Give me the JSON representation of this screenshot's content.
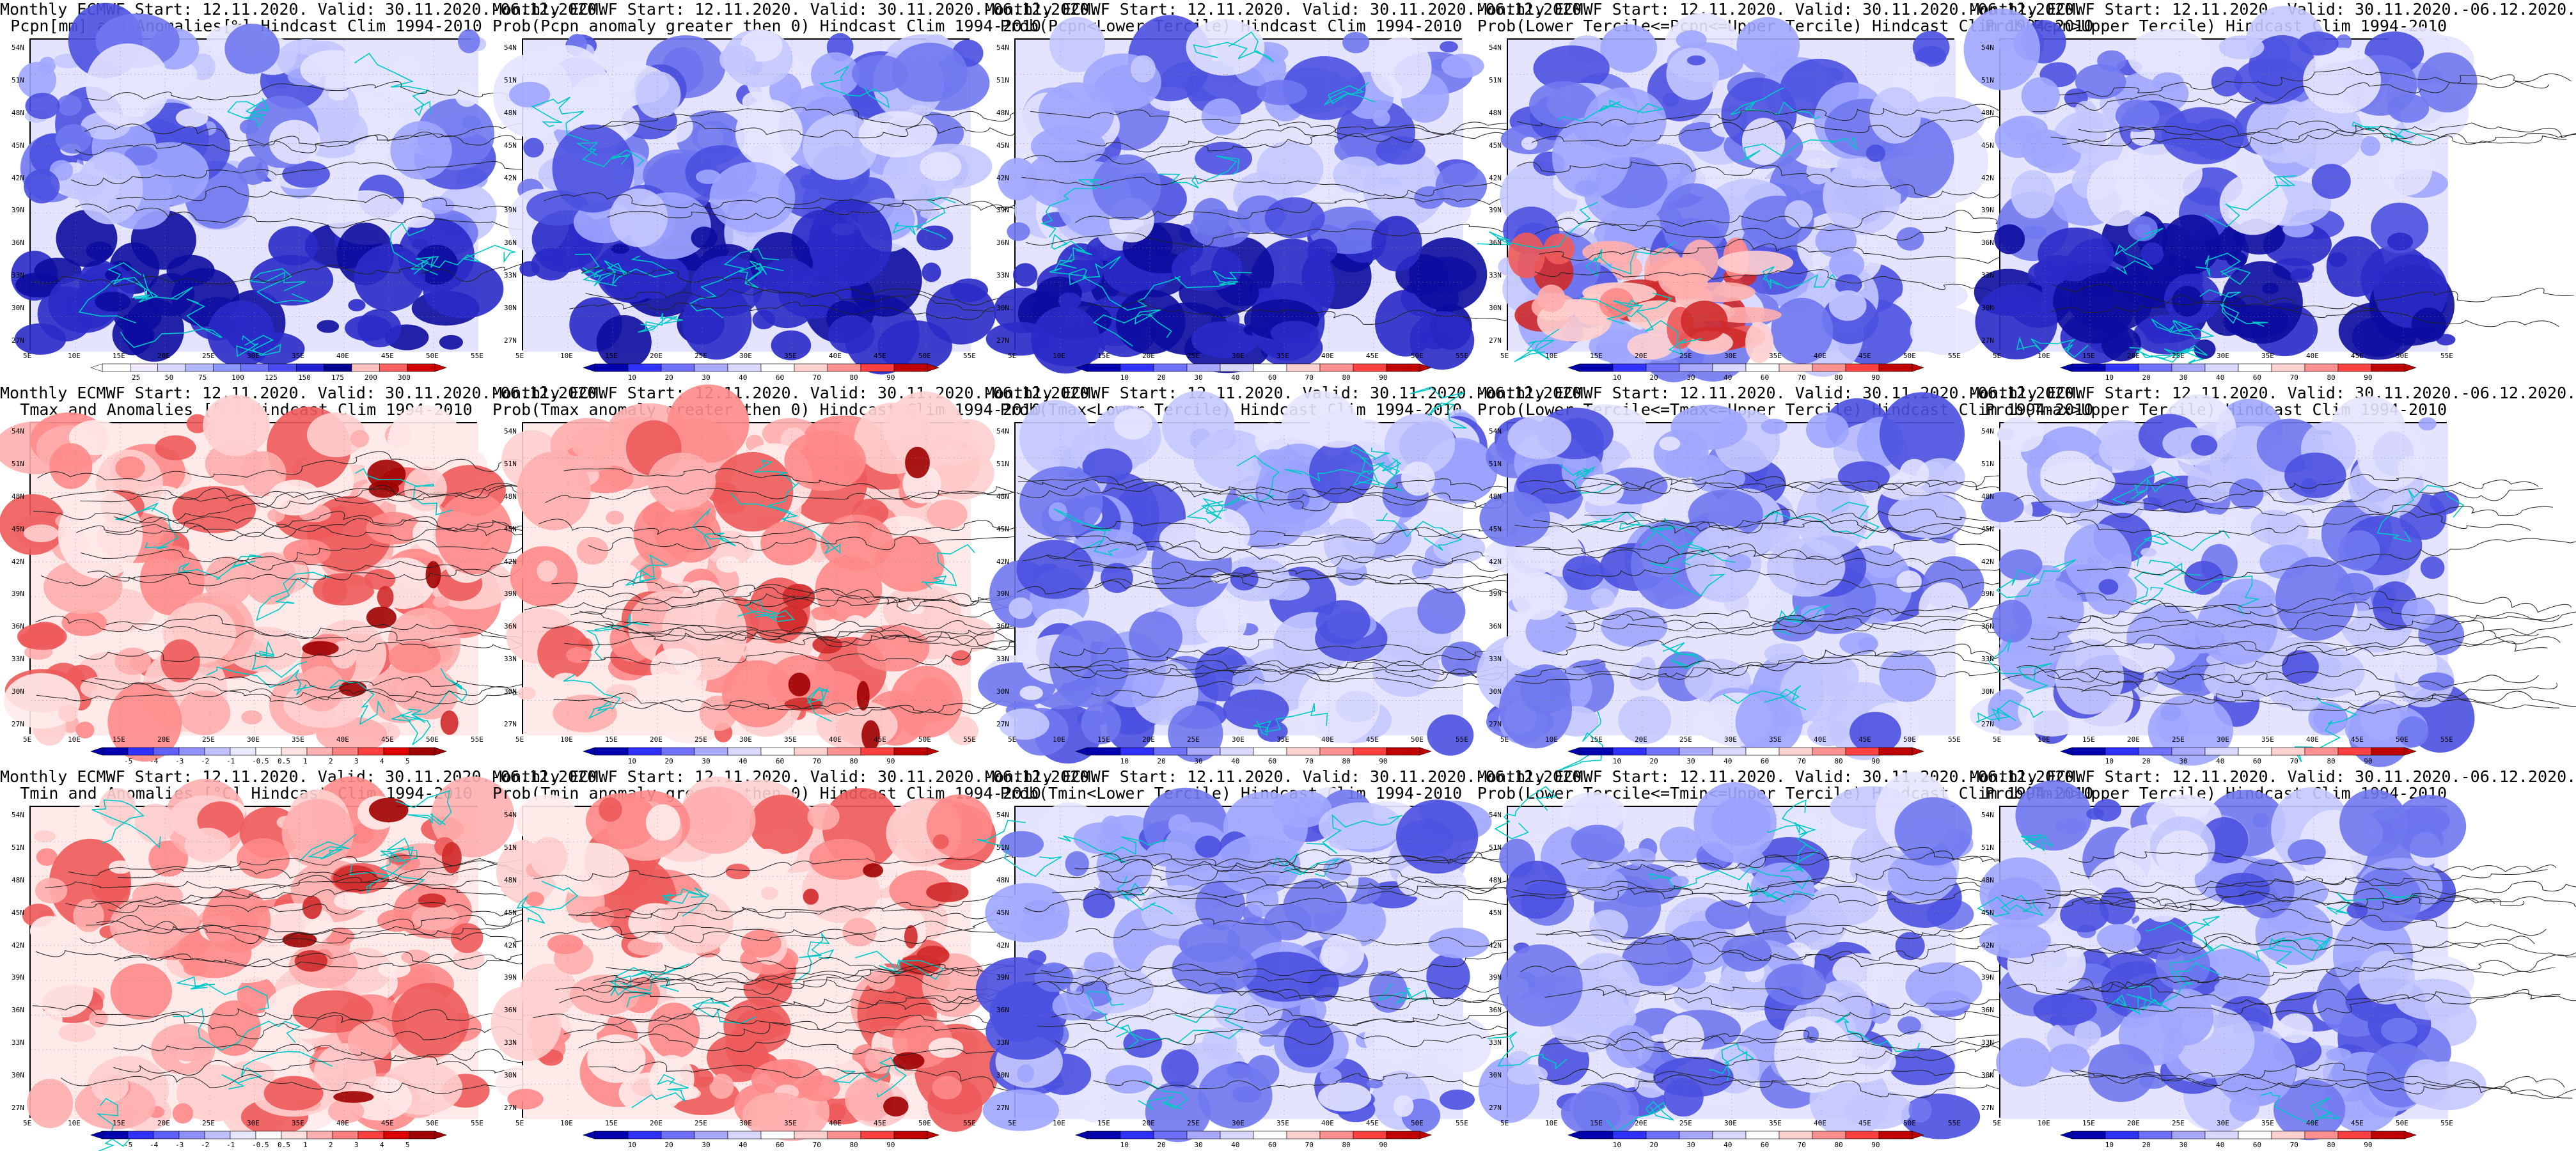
{
  "figure": {
    "lat_labels": [
      "54N",
      "51N",
      "48N",
      "45N",
      "42N",
      "39N",
      "36N",
      "33N",
      "30N",
      "27N"
    ],
    "lon_labels": [
      "5E",
      "10E",
      "15E",
      "20E",
      "25E",
      "30E",
      "35E",
      "40E",
      "45E",
      "50E",
      "55E"
    ],
    "panels": [
      {
        "title1": "Monthly ECMWF Start: 12.11.2020. Valid: 30.11.2020.-06.12.2020.",
        "title2": "Pcpn[mm] and Anomalies[%] Hindcast Clim 1994-2010",
        "palette": "blue",
        "field": "pcpn_anom",
        "colorbar_labels": [
          "25",
          "50",
          "75",
          "100",
          "125",
          "150",
          "175",
          "200",
          "300"
        ],
        "colorbar_colors": [
          "#ffffff",
          "#f0e8ff",
          "#d6d6ff",
          "#b0b8ff",
          "#8c96ff",
          "#6e74ff",
          "#4a4af0",
          "#2020d0",
          "#000090",
          "#ffc0c0",
          "#ff6060",
          "#d00000"
        ]
      },
      {
        "title1": "Monthly ECMWF Start: 12.11.2020. Valid: 30.11.2020.-06.12.2020.",
        "title2": "Prob(Pcpn anomaly greater then 0) Hindcast Clim 1994-2010",
        "palette": "blue",
        "field": "pcpn_prob",
        "colorbar_labels": [
          "10",
          "20",
          "30",
          "40",
          "60",
          "70",
          "80",
          "90"
        ],
        "colorbar_colors": [
          "#0000b0",
          "#3030ff",
          "#7070ff",
          "#a8a8ff",
          "#d8d8ff",
          "#ffffff",
          "#ffd0d0",
          "#ff9090",
          "#ff4040",
          "#c00000"
        ]
      },
      {
        "title1": "Monthly ECMWF Start: 12.11.2020. Valid: 30.11.2020.-06.12.2020.",
        "title2": "Prob(Pcpn<Lower Tercile) Hindcast Clim 1994-2010",
        "palette": "blue",
        "field": "pcpn_low",
        "colorbar_labels": [
          "10",
          "20",
          "30",
          "40",
          "60",
          "70",
          "80",
          "90"
        ],
        "colorbar_colors": [
          "#0000b0",
          "#3030ff",
          "#7070ff",
          "#a8a8ff",
          "#d8d8ff",
          "#ffffff",
          "#ffd0d0",
          "#ff9090",
          "#ff4040",
          "#c00000"
        ]
      },
      {
        "title1": "Monthly ECMWF Start: 12.11.2020. Valid: 30.11.2020.-06.12.2020.",
        "title2": "Prob(Lower Tercile<=Pcpn<=Upper Tercile) Hindcast Clim 1994-2010",
        "palette": "blue",
        "field": "pcpn_mid",
        "colorbar_labels": [
          "10",
          "20",
          "30",
          "40",
          "60",
          "70",
          "80",
          "90"
        ],
        "colorbar_colors": [
          "#0000b0",
          "#3030ff",
          "#7070ff",
          "#a8a8ff",
          "#d8d8ff",
          "#ffffff",
          "#ffd0d0",
          "#ff9090",
          "#ff4040",
          "#c00000"
        ]
      },
      {
        "title1": "Monthly ECMWF Start: 12.11.2020. Valid: 30.11.2020.-06.12.2020.",
        "title2": "Prob(Pcpn>Upper Tercile) Hindcast Clim 1994-2010",
        "palette": "blue",
        "field": "pcpn_high",
        "colorbar_labels": [
          "10",
          "20",
          "30",
          "40",
          "60",
          "70",
          "80",
          "90"
        ],
        "colorbar_colors": [
          "#0000b0",
          "#3030ff",
          "#7070ff",
          "#a8a8ff",
          "#d8d8ff",
          "#ffffff",
          "#ffd0d0",
          "#ff9090",
          "#ff4040",
          "#c00000"
        ]
      },
      {
        "title1": "Monthly ECMWF Start: 12.11.2020. Valid: 30.11.2020.-06.12.2020.",
        "title2": "Tmax and Anomalies [°C] Hindcast Clim 1994-2010",
        "palette": "red",
        "field": "tmax_anom",
        "colorbar_labels": [
          "-5",
          "-4",
          "-3",
          "-2",
          "-1",
          "-0.5",
          "0.5",
          "1",
          "2",
          "3",
          "4",
          "5"
        ],
        "colorbar_colors": [
          "#0000b0",
          "#3030ff",
          "#6060ff",
          "#9090ff",
          "#c0c0ff",
          "#e8e8ff",
          "#ffffff",
          "#ffe0e0",
          "#ffb0b0",
          "#ff8080",
          "#ff4040",
          "#e00000",
          "#a00000"
        ]
      },
      {
        "title1": "Monthly ECMWF Start: 12.11.2020. Valid: 30.11.2020.-06.12.2020.",
        "title2": "Prob(Tmax anomaly greater then 0) Hindcast Clim 1994-2010",
        "palette": "red",
        "field": "tmax_prob",
        "colorbar_labels": [
          "10",
          "20",
          "30",
          "40",
          "60",
          "70",
          "80",
          "90"
        ],
        "colorbar_colors": [
          "#0000b0",
          "#3030ff",
          "#7070ff",
          "#a8a8ff",
          "#d8d8ff",
          "#ffffff",
          "#ffd0d0",
          "#ff9090",
          "#ff4040",
          "#c00000"
        ]
      },
      {
        "title1": "Monthly ECMWF Start: 12.11.2020. Valid: 30.11.2020.-06.12.2020.",
        "title2": "Prob(Tmax<Lower Tercile) Hindcast Clim 1994-2010",
        "palette": "blue",
        "field": "tmax_low",
        "colorbar_labels": [
          "10",
          "20",
          "30",
          "40",
          "60",
          "70",
          "80",
          "90"
        ],
        "colorbar_colors": [
          "#0000b0",
          "#3030ff",
          "#7070ff",
          "#a8a8ff",
          "#d8d8ff",
          "#ffffff",
          "#ffd0d0",
          "#ff9090",
          "#ff4040",
          "#c00000"
        ]
      },
      {
        "title1": "Monthly ECMWF Start: 12.11.2020. Valid: 30.11.2020.-06.12.2020.",
        "title2": "Prob(Lower Tercile<=Tmax<=Upper Tercile) Hindcast Clim 1994-2010",
        "palette": "blue",
        "field": "tmax_mid",
        "colorbar_labels": [
          "10",
          "20",
          "30",
          "40",
          "60",
          "70",
          "80",
          "90"
        ],
        "colorbar_colors": [
          "#0000b0",
          "#3030ff",
          "#7070ff",
          "#a8a8ff",
          "#d8d8ff",
          "#ffffff",
          "#ffd0d0",
          "#ff9090",
          "#ff4040",
          "#c00000"
        ]
      },
      {
        "title1": "Monthly ECMWF Start: 12.11.2020. Valid: 30.11.2020.-06.12.2020.",
        "title2": "Prob(Tmax>Upper Tercile) Hindcast Clim 1994-2010",
        "palette": "blue",
        "field": "tmax_high",
        "colorbar_labels": [
          "10",
          "20",
          "30",
          "40",
          "60",
          "70",
          "80",
          "90"
        ],
        "colorbar_colors": [
          "#0000b0",
          "#3030ff",
          "#7070ff",
          "#a8a8ff",
          "#d8d8ff",
          "#ffffff",
          "#ffd0d0",
          "#ff9090",
          "#ff4040",
          "#c00000"
        ]
      },
      {
        "title1": "Monthly ECMWF Start: 12.11.2020. Valid: 30.11.2020.-06.12.2020.",
        "title2": "Tmin and Anomalies [°C] Hindcast Clim 1994-2010",
        "palette": "red",
        "field": "tmin_anom",
        "colorbar_labels": [
          "-5",
          "-4",
          "-3",
          "-2",
          "-1",
          "-0.5",
          "0.5",
          "1",
          "2",
          "3",
          "4",
          "5"
        ],
        "colorbar_colors": [
          "#0000b0",
          "#3030ff",
          "#6060ff",
          "#9090ff",
          "#c0c0ff",
          "#e8e8ff",
          "#ffffff",
          "#ffe0e0",
          "#ffb0b0",
          "#ff8080",
          "#ff4040",
          "#e00000",
          "#a00000"
        ]
      },
      {
        "title1": "Monthly ECMWF Start: 12.11.2020. Valid: 30.11.2020.-06.12.2020.",
        "title2": "Prob(Tmin anomaly greater then 0) Hindcast Clim 1994-2010",
        "palette": "red",
        "field": "tmin_prob",
        "colorbar_labels": [
          "10",
          "20",
          "30",
          "40",
          "60",
          "70",
          "80",
          "90"
        ],
        "colorbar_colors": [
          "#0000b0",
          "#3030ff",
          "#7070ff",
          "#a8a8ff",
          "#d8d8ff",
          "#ffffff",
          "#ffd0d0",
          "#ff9090",
          "#ff4040",
          "#c00000"
        ]
      },
      {
        "title1": "Monthly ECMWF Start: 12.11.2020. Valid: 30.11.2020.-06.12.2020.",
        "title2": "Prob(Tmin<Lower Tercile) Hindcast Clim 1994-2010",
        "palette": "blue",
        "field": "tmin_low",
        "colorbar_labels": [
          "10",
          "20",
          "30",
          "40",
          "60",
          "70",
          "80",
          "90"
        ],
        "colorbar_colors": [
          "#0000b0",
          "#3030ff",
          "#7070ff",
          "#a8a8ff",
          "#d8d8ff",
          "#ffffff",
          "#ffd0d0",
          "#ff9090",
          "#ff4040",
          "#c00000"
        ]
      },
      {
        "title1": "Monthly ECMWF Start: 12.11.2020. Valid: 30.11.2020.-06.12.2020.",
        "title2": "Prob(Lower Tercile<=Tmin<=Upper Tercile) Hindcast Clim 1994-2010",
        "palette": "blue",
        "field": "tmin_mid",
        "colorbar_labels": [
          "10",
          "20",
          "30",
          "40",
          "60",
          "70",
          "80",
          "90"
        ],
        "colorbar_colors": [
          "#0000b0",
          "#3030ff",
          "#7070ff",
          "#a8a8ff",
          "#d8d8ff",
          "#ffffff",
          "#ffd0d0",
          "#ff9090",
          "#ff4040",
          "#c00000"
        ]
      },
      {
        "title1": "Monthly ECMWF Start: 12.11.2020. Valid: 30.11.2020.-06.12.2020.",
        "title2": "Prob(Tmin>Upper Tercile) Hindcast Clim 1994-2010",
        "palette": "blue",
        "field": "tmin_high",
        "colorbar_labels": [
          "10",
          "20",
          "30",
          "40",
          "60",
          "70",
          "80",
          "90"
        ],
        "colorbar_colors": [
          "#0000b0",
          "#3030ff",
          "#7070ff",
          "#a8a8ff",
          "#d8d8ff",
          "#ffffff",
          "#ffd0d0",
          "#ff9090",
          "#ff4040",
          "#c00000"
        ]
      }
    ]
  }
}
